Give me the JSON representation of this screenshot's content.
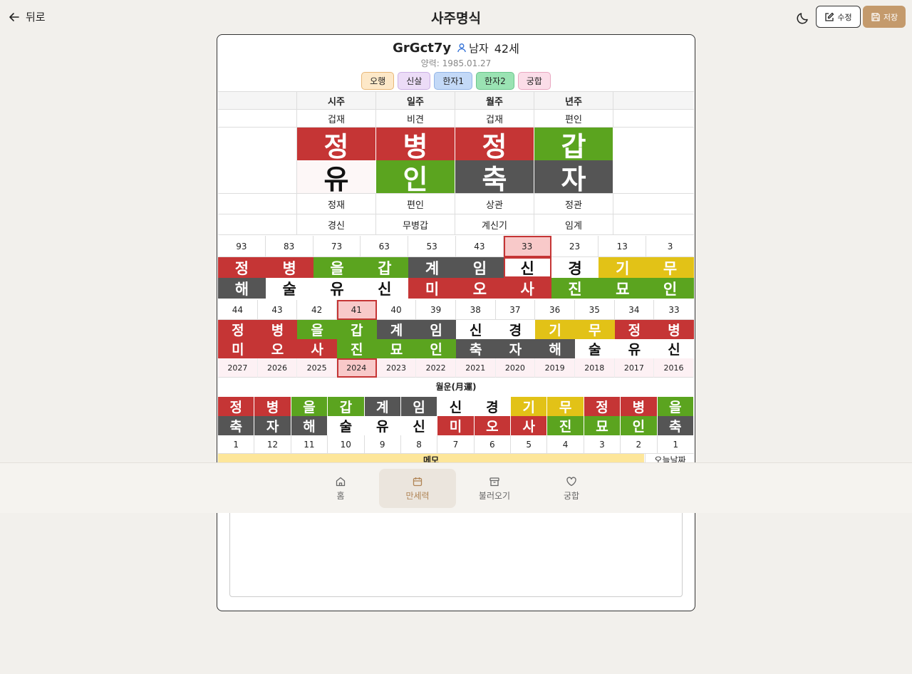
{
  "header": {
    "back_label": "뒤로",
    "title": "사주명식",
    "edit_label": "수정",
    "save_label": "저장"
  },
  "profile": {
    "name": "GrGct7y",
    "gender": "남자",
    "age": "42세",
    "solar_date": "양력: 1985.01.27"
  },
  "tabs": [
    "오행",
    "신살",
    "한자1",
    "한자2",
    "궁합"
  ],
  "pillars": {
    "headers": [
      "시주",
      "일주",
      "월주",
      "년주"
    ],
    "top_sipsin": [
      "겁재",
      "비견",
      "겁재",
      "편인"
    ],
    "stems": [
      {
        "char": "정",
        "color": "red"
      },
      {
        "char": "병",
        "color": "red"
      },
      {
        "char": "정",
        "color": "red"
      },
      {
        "char": "갑",
        "color": "green"
      }
    ],
    "branches": [
      {
        "char": "유",
        "color": "white2"
      },
      {
        "char": "인",
        "color": "green"
      },
      {
        "char": "축",
        "color": "dark"
      },
      {
        "char": "자",
        "color": "dark"
      }
    ],
    "bottom_sipsin": [
      "정재",
      "편인",
      "상관",
      "정관"
    ],
    "jijanggan": [
      "경신",
      "무병갑",
      "계신기",
      "임계"
    ]
  },
  "daeun": {
    "ages": [
      "93",
      "83",
      "73",
      "63",
      "53",
      "43",
      "33",
      "23",
      "13",
      "3"
    ],
    "selected_index": 6,
    "stems": [
      {
        "char": "정",
        "color": "red"
      },
      {
        "char": "병",
        "color": "red"
      },
      {
        "char": "을",
        "color": "green"
      },
      {
        "char": "갑",
        "color": "green"
      },
      {
        "char": "계",
        "color": "dark"
      },
      {
        "char": "임",
        "color": "dark"
      },
      {
        "char": "신",
        "color": "white"
      },
      {
        "char": "경",
        "color": "white"
      },
      {
        "char": "기",
        "color": "yellow"
      },
      {
        "char": "무",
        "color": "yellow"
      }
    ],
    "branches": [
      {
        "char": "해",
        "color": "dark"
      },
      {
        "char": "술",
        "color": "white"
      },
      {
        "char": "유",
        "color": "white"
      },
      {
        "char": "신",
        "color": "white"
      },
      {
        "char": "미",
        "color": "red"
      },
      {
        "char": "오",
        "color": "red"
      },
      {
        "char": "사",
        "color": "red"
      },
      {
        "char": "진",
        "color": "green"
      },
      {
        "char": "묘",
        "color": "green"
      },
      {
        "char": "인",
        "color": "green"
      }
    ]
  },
  "seun": {
    "ages": [
      "44",
      "43",
      "42",
      "41",
      "40",
      "39",
      "38",
      "37",
      "36",
      "35",
      "34",
      "33"
    ],
    "selected_index": 3,
    "stems": [
      {
        "char": "정",
        "color": "red"
      },
      {
        "char": "병",
        "color": "red"
      },
      {
        "char": "을",
        "color": "green"
      },
      {
        "char": "갑",
        "color": "green"
      },
      {
        "char": "계",
        "color": "dark"
      },
      {
        "char": "임",
        "color": "dark"
      },
      {
        "char": "신",
        "color": "white"
      },
      {
        "char": "경",
        "color": "white"
      },
      {
        "char": "기",
        "color": "yellow"
      },
      {
        "char": "무",
        "color": "yellow"
      },
      {
        "char": "정",
        "color": "red"
      },
      {
        "char": "병",
        "color": "red"
      }
    ],
    "branches": [
      {
        "char": "미",
        "color": "red"
      },
      {
        "char": "오",
        "color": "red"
      },
      {
        "char": "사",
        "color": "red"
      },
      {
        "char": "진",
        "color": "green"
      },
      {
        "char": "묘",
        "color": "green"
      },
      {
        "char": "인",
        "color": "green"
      },
      {
        "char": "축",
        "color": "dark"
      },
      {
        "char": "자",
        "color": "dark"
      },
      {
        "char": "해",
        "color": "dark"
      },
      {
        "char": "술",
        "color": "white"
      },
      {
        "char": "유",
        "color": "white"
      },
      {
        "char": "신",
        "color": "white"
      }
    ],
    "years": [
      "2027",
      "2026",
      "2025",
      "2024",
      "2023",
      "2022",
      "2021",
      "2020",
      "2019",
      "2018",
      "2017",
      "2016"
    ]
  },
  "wolun": {
    "title": "월운(月運)",
    "stems": [
      {
        "char": "정",
        "color": "red"
      },
      {
        "char": "병",
        "color": "red"
      },
      {
        "char": "을",
        "color": "green"
      },
      {
        "char": "갑",
        "color": "green"
      },
      {
        "char": "계",
        "color": "dark"
      },
      {
        "char": "임",
        "color": "dark"
      },
      {
        "char": "신",
        "color": "white"
      },
      {
        "char": "경",
        "color": "white"
      },
      {
        "char": "기",
        "color": "yellow"
      },
      {
        "char": "무",
        "color": "yellow"
      },
      {
        "char": "정",
        "color": "red"
      },
      {
        "char": "병",
        "color": "red"
      },
      {
        "char": "을",
        "color": "green"
      }
    ],
    "branches": [
      {
        "char": "축",
        "color": "dark"
      },
      {
        "char": "자",
        "color": "dark"
      },
      {
        "char": "해",
        "color": "dark"
      },
      {
        "char": "술",
        "color": "white"
      },
      {
        "char": "유",
        "color": "white"
      },
      {
        "char": "신",
        "color": "white"
      },
      {
        "char": "미",
        "color": "red"
      },
      {
        "char": "오",
        "color": "red"
      },
      {
        "char": "사",
        "color": "red"
      },
      {
        "char": "진",
        "color": "green"
      },
      {
        "char": "묘",
        "color": "green"
      },
      {
        "char": "인",
        "color": "green"
      },
      {
        "char": "축",
        "color": "dark"
      }
    ],
    "months": [
      "1",
      "12",
      "11",
      "10",
      "9",
      "8",
      "7",
      "6",
      "5",
      "4",
      "3",
      "2",
      "1"
    ]
  },
  "memo": {
    "label": "메모",
    "today_label": "오늘날짜"
  },
  "nav": [
    {
      "label": "홈",
      "icon": "home-icon"
    },
    {
      "label": "만세력",
      "icon": "calendar-icon"
    },
    {
      "label": "불러오기",
      "icon": "archive-icon"
    },
    {
      "label": "궁합",
      "icon": "heart-icon"
    }
  ],
  "nav_active_index": 1
}
